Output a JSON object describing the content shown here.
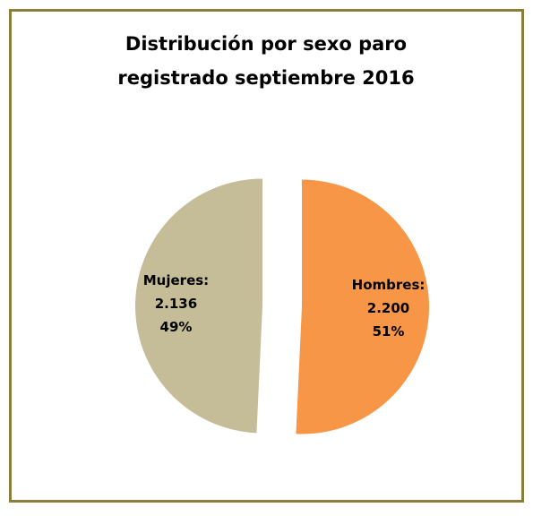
{
  "chart_data": {
    "type": "pie",
    "title": "Distribución por sexo paro registrado septiembre 2016",
    "title_lines": [
      "Distribución por sexo paro",
      "registrado septiembre 2016"
    ],
    "categories": [
      "Hombres:",
      "Mujeres:"
    ],
    "values": [
      2200,
      2136
    ],
    "value_labels": [
      "2.200",
      "2.136"
    ],
    "percentages": [
      51,
      49
    ],
    "percentage_labels": [
      "51%",
      "49%"
    ],
    "colors": [
      "#f79646",
      "#c4bd97"
    ],
    "start_angle": 0,
    "exploded": true
  }
}
